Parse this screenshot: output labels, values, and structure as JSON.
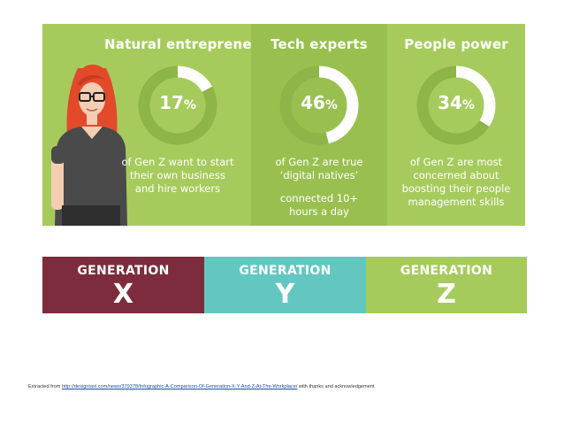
{
  "panels": [
    {
      "title": "Natural entrepreneurs",
      "value": 17,
      "number": "17",
      "percent_sign": "%",
      "desc_lines": [
        "of Gen Z want to start",
        "their own business",
        "and hire workers"
      ],
      "extra_lines": []
    },
    {
      "title": "Tech experts",
      "value": 46,
      "number": "46",
      "percent_sign": "%",
      "desc_lines": [
        "of Gen Z are true",
        "‘digital natives’"
      ],
      "extra_lines": [
        "connected 10+",
        "hours a day"
      ]
    },
    {
      "title": "People power",
      "value": 34,
      "number": "34",
      "percent_sign": "%",
      "desc_lines": [
        "of Gen Z are most",
        "concerned about",
        "boosting their people",
        "management skills"
      ],
      "extra_lines": []
    }
  ],
  "generations": [
    {
      "word": "GENERATION",
      "letter": "X",
      "color": "#7c2c3d"
    },
    {
      "word": "GENERATION",
      "letter": "Y",
      "color": "#63c7c1"
    },
    {
      "word": "GENERATION",
      "letter": "Z",
      "color": "#a6cb5c"
    }
  ],
  "caption": {
    "prefix": "Extracted from ",
    "link": "http://designtaxi.com/news/379378/Infographic-A-Comparison-Of-Generation-X-Y-And-Z-At-The-Workplace/",
    "suffix": " with thanks and acknowledgement"
  },
  "colors": {
    "green": "#a6cb5c",
    "green_dark": "#99c04f",
    "donut_track": "#8db547",
    "white": "#ffffff"
  }
}
